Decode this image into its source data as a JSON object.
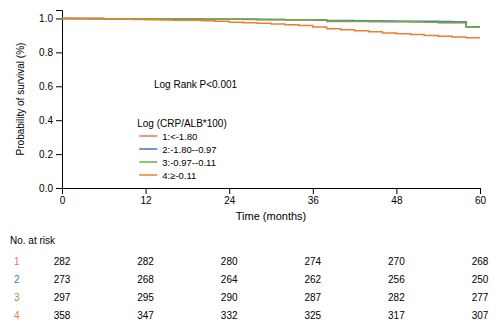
{
  "chart_data": {
    "type": "step",
    "xlabel": "Time (months)",
    "ylabel": "Probability of survival (%)",
    "xlim": [
      0,
      60
    ],
    "ylim": [
      0.0,
      1.05
    ],
    "xticks": [
      0,
      12,
      24,
      36,
      48,
      60
    ],
    "yticks": [
      {
        "value": 0.0,
        "label": "0.0"
      },
      0.2,
      0.4,
      0.6,
      0.8,
      {
        "value": 1.0,
        "label": "1.0"
      }
    ],
    "grid": false,
    "legend": "lower left",
    "legend_title": "Log (CRP/ALB*100)",
    "annotations": [
      "Log Rank P<0.001"
    ],
    "x": [
      0,
      2,
      4,
      6,
      8,
      10,
      12,
      14,
      16,
      18,
      20,
      22,
      24,
      26,
      28,
      30,
      32,
      34,
      36,
      38,
      40,
      42,
      44,
      46,
      48,
      50,
      52,
      54,
      56,
      58,
      60
    ],
    "series": [
      {
        "name": "1:<-1.80",
        "color": "#E8735A",
        "values": [
          1.0,
          1.0,
          1.0,
          0.999,
          0.999,
          0.999,
          0.998,
          0.997,
          0.997,
          0.997,
          0.996,
          0.996,
          0.995,
          0.995,
          0.994,
          0.994,
          0.993,
          0.993,
          0.992,
          0.982,
          0.982,
          0.982,
          0.981,
          0.981,
          0.98,
          0.979,
          0.978,
          0.975,
          0.975,
          0.951,
          0.951
        ]
      },
      {
        "name": "2:-1.80--0.97",
        "color": "#4472C4",
        "values": [
          1.0,
          1.0,
          1.0,
          0.999,
          0.999,
          0.999,
          0.998,
          0.997,
          0.997,
          0.997,
          0.996,
          0.996,
          0.995,
          0.995,
          0.994,
          0.994,
          0.993,
          0.993,
          0.991,
          0.988,
          0.988,
          0.986,
          0.986,
          0.985,
          0.984,
          0.984,
          0.983,
          0.982,
          0.981,
          0.951,
          0.951
        ]
      },
      {
        "name": "3:-0.97--0.11",
        "color": "#70AD47",
        "values": [
          1.0,
          1.0,
          1.0,
          0.999,
          0.999,
          0.999,
          0.998,
          0.997,
          0.997,
          0.997,
          0.996,
          0.996,
          0.995,
          0.994,
          0.994,
          0.993,
          0.993,
          0.992,
          0.99,
          0.985,
          0.984,
          0.984,
          0.983,
          0.982,
          0.982,
          0.98,
          0.978,
          0.977,
          0.976,
          0.95,
          0.95
        ]
      },
      {
        "name": "4:≥-0.11",
        "color": "#ED7D31",
        "values": [
          1.0,
          0.998,
          0.997,
          0.996,
          0.995,
          0.994,
          0.993,
          0.991,
          0.99,
          0.989,
          0.987,
          0.983,
          0.978,
          0.975,
          0.972,
          0.967,
          0.963,
          0.959,
          0.95,
          0.94,
          0.933,
          0.928,
          0.922,
          0.915,
          0.91,
          0.906,
          0.9,
          0.895,
          0.891,
          0.886,
          0.882
        ]
      }
    ],
    "risk_table": {
      "title": "No. at risk",
      "groups": [
        "1",
        "2",
        "3",
        "4"
      ],
      "timepoints": [
        0,
        12,
        24,
        36,
        48,
        60
      ],
      "values": [
        [
          282,
          282,
          280,
          274,
          270,
          268
        ],
        [
          273,
          268,
          264,
          262,
          256,
          250
        ],
        [
          297,
          295,
          290,
          287,
          282,
          277
        ],
        [
          358,
          347,
          332,
          325,
          317,
          307
        ]
      ]
    }
  }
}
